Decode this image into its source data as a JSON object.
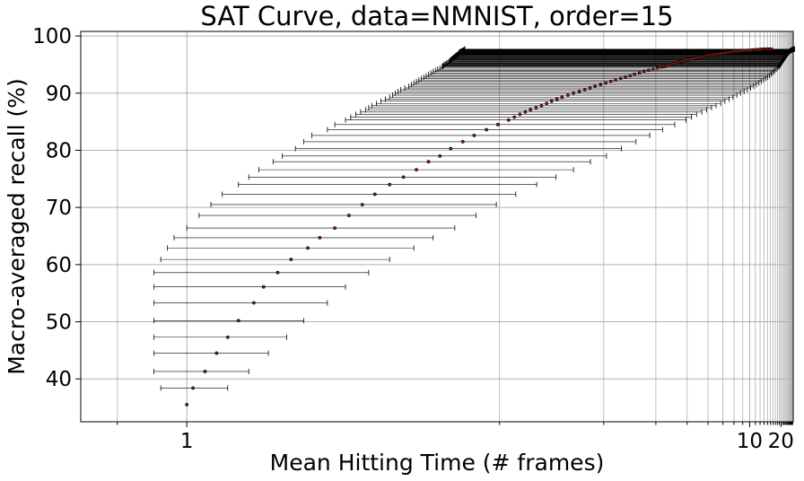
{
  "chart_data": {
    "type": "scatter",
    "title": "SAT Curve, data=NMNIST, order=15",
    "xlabel": "Mean Hitting Time (# frames)",
    "ylabel": "Macro-averaged recall (%)",
    "xscale": "reciprocal",
    "xlim": [
      0.855,
      33
    ],
    "ylim": [
      32.5,
      100.8
    ],
    "x_ticks": [
      1,
      10,
      20
    ],
    "x_tick_labels": [
      "1",
      "10",
      "20"
    ],
    "y_ticks": [
      40,
      50,
      60,
      70,
      80,
      90,
      100
    ],
    "y_tick_labels": [
      "40",
      "50",
      "60",
      "70",
      "80",
      "90",
      "100"
    ],
    "grid": true,
    "legend": "none",
    "marker_color": "#8b1a1a",
    "errorbar_color": "#000000",
    "series": [
      {
        "x": [
          1.0,
          1.01,
          1.03,
          1.05,
          1.07,
          1.09,
          1.12,
          1.14,
          1.17,
          1.2,
          1.24,
          1.27,
          1.31,
          1.35,
          1.39,
          1.43,
          1.48,
          1.53,
          1.58,
          1.63,
          1.68,
          1.73,
          1.79,
          1.85,
          1.92,
          1.99,
          2.06,
          2.14,
          2.22,
          2.31,
          2.4,
          2.5,
          2.62,
          2.75,
          2.88,
          3.03,
          3.18,
          3.35,
          3.52,
          3.72,
          3.93,
          4.15,
          4.4,
          4.67,
          4.95,
          5.3,
          5.7,
          6.15,
          6.7,
          7.3,
          8.0,
          8.9,
          10.0,
          11.4,
          13.2,
          15.3
        ],
        "y": [
          35.5,
          38.4,
          41.3,
          44.5,
          47.3,
          50.2,
          53.3,
          56.1,
          58.6,
          60.9,
          62.9,
          64.7,
          66.4,
          68.6,
          70.5,
          72.3,
          74.0,
          75.3,
          76.6,
          78.0,
          79.0,
          80.3,
          81.5,
          82.6,
          83.6,
          84.5,
          85.3,
          86.3,
          87.1,
          87.8,
          88.6,
          89.3,
          90.0,
          90.6,
          91.2,
          91.8,
          92.3,
          92.8,
          93.3,
          93.8,
          94.2,
          94.6,
          95.0,
          95.4,
          95.8,
          96.1,
          96.4,
          96.7,
          96.9,
          97.1,
          97.3,
          97.4,
          97.5,
          97.6,
          97.7,
          97.7
        ],
        "x_err_low": [
          0.0,
          0.05,
          0.08,
          0.1,
          0.12,
          0.14,
          0.17,
          0.19,
          0.22,
          0.24,
          0.27,
          0.29,
          0.31,
          0.33,
          0.35,
          0.37,
          0.39,
          0.42,
          0.45,
          0.47,
          0.5,
          0.52,
          0.56,
          0.6,
          0.63,
          0.68,
          0.72,
          0.77,
          0.82,
          0.89,
          0.95,
          1.02,
          1.12,
          1.23,
          1.33,
          1.46,
          1.59,
          1.74,
          1.89,
          2.07,
          2.26,
          2.46,
          2.7,
          2.95,
          3.22,
          3.56,
          3.95,
          4.39,
          4.93,
          5.53,
          6.22,
          7.11,
          8.21,
          9.6,
          11.4,
          13.5
        ],
        "x_err_high": [
          0.0,
          0.06,
          0.08,
          0.1,
          0.12,
          0.14,
          0.17,
          0.2,
          0.24,
          0.28,
          0.33,
          0.38,
          0.44,
          0.51,
          0.59,
          0.68,
          0.79,
          0.91,
          1.04,
          1.19,
          1.36,
          1.55,
          1.76,
          2.0,
          2.26,
          2.56,
          2.9,
          3.27,
          3.7,
          4.2,
          4.77,
          5.4,
          6.1,
          6.9,
          7.8,
          8.7,
          9.7,
          10.7,
          11.7,
          12.6,
          13.5,
          14.4,
          15.2,
          15.9,
          16.6,
          17.2,
          17.8,
          18.3,
          18.7,
          19.1,
          19.4,
          19.6,
          19.9,
          20.0,
          20.1,
          20.2
        ]
      }
    ]
  }
}
